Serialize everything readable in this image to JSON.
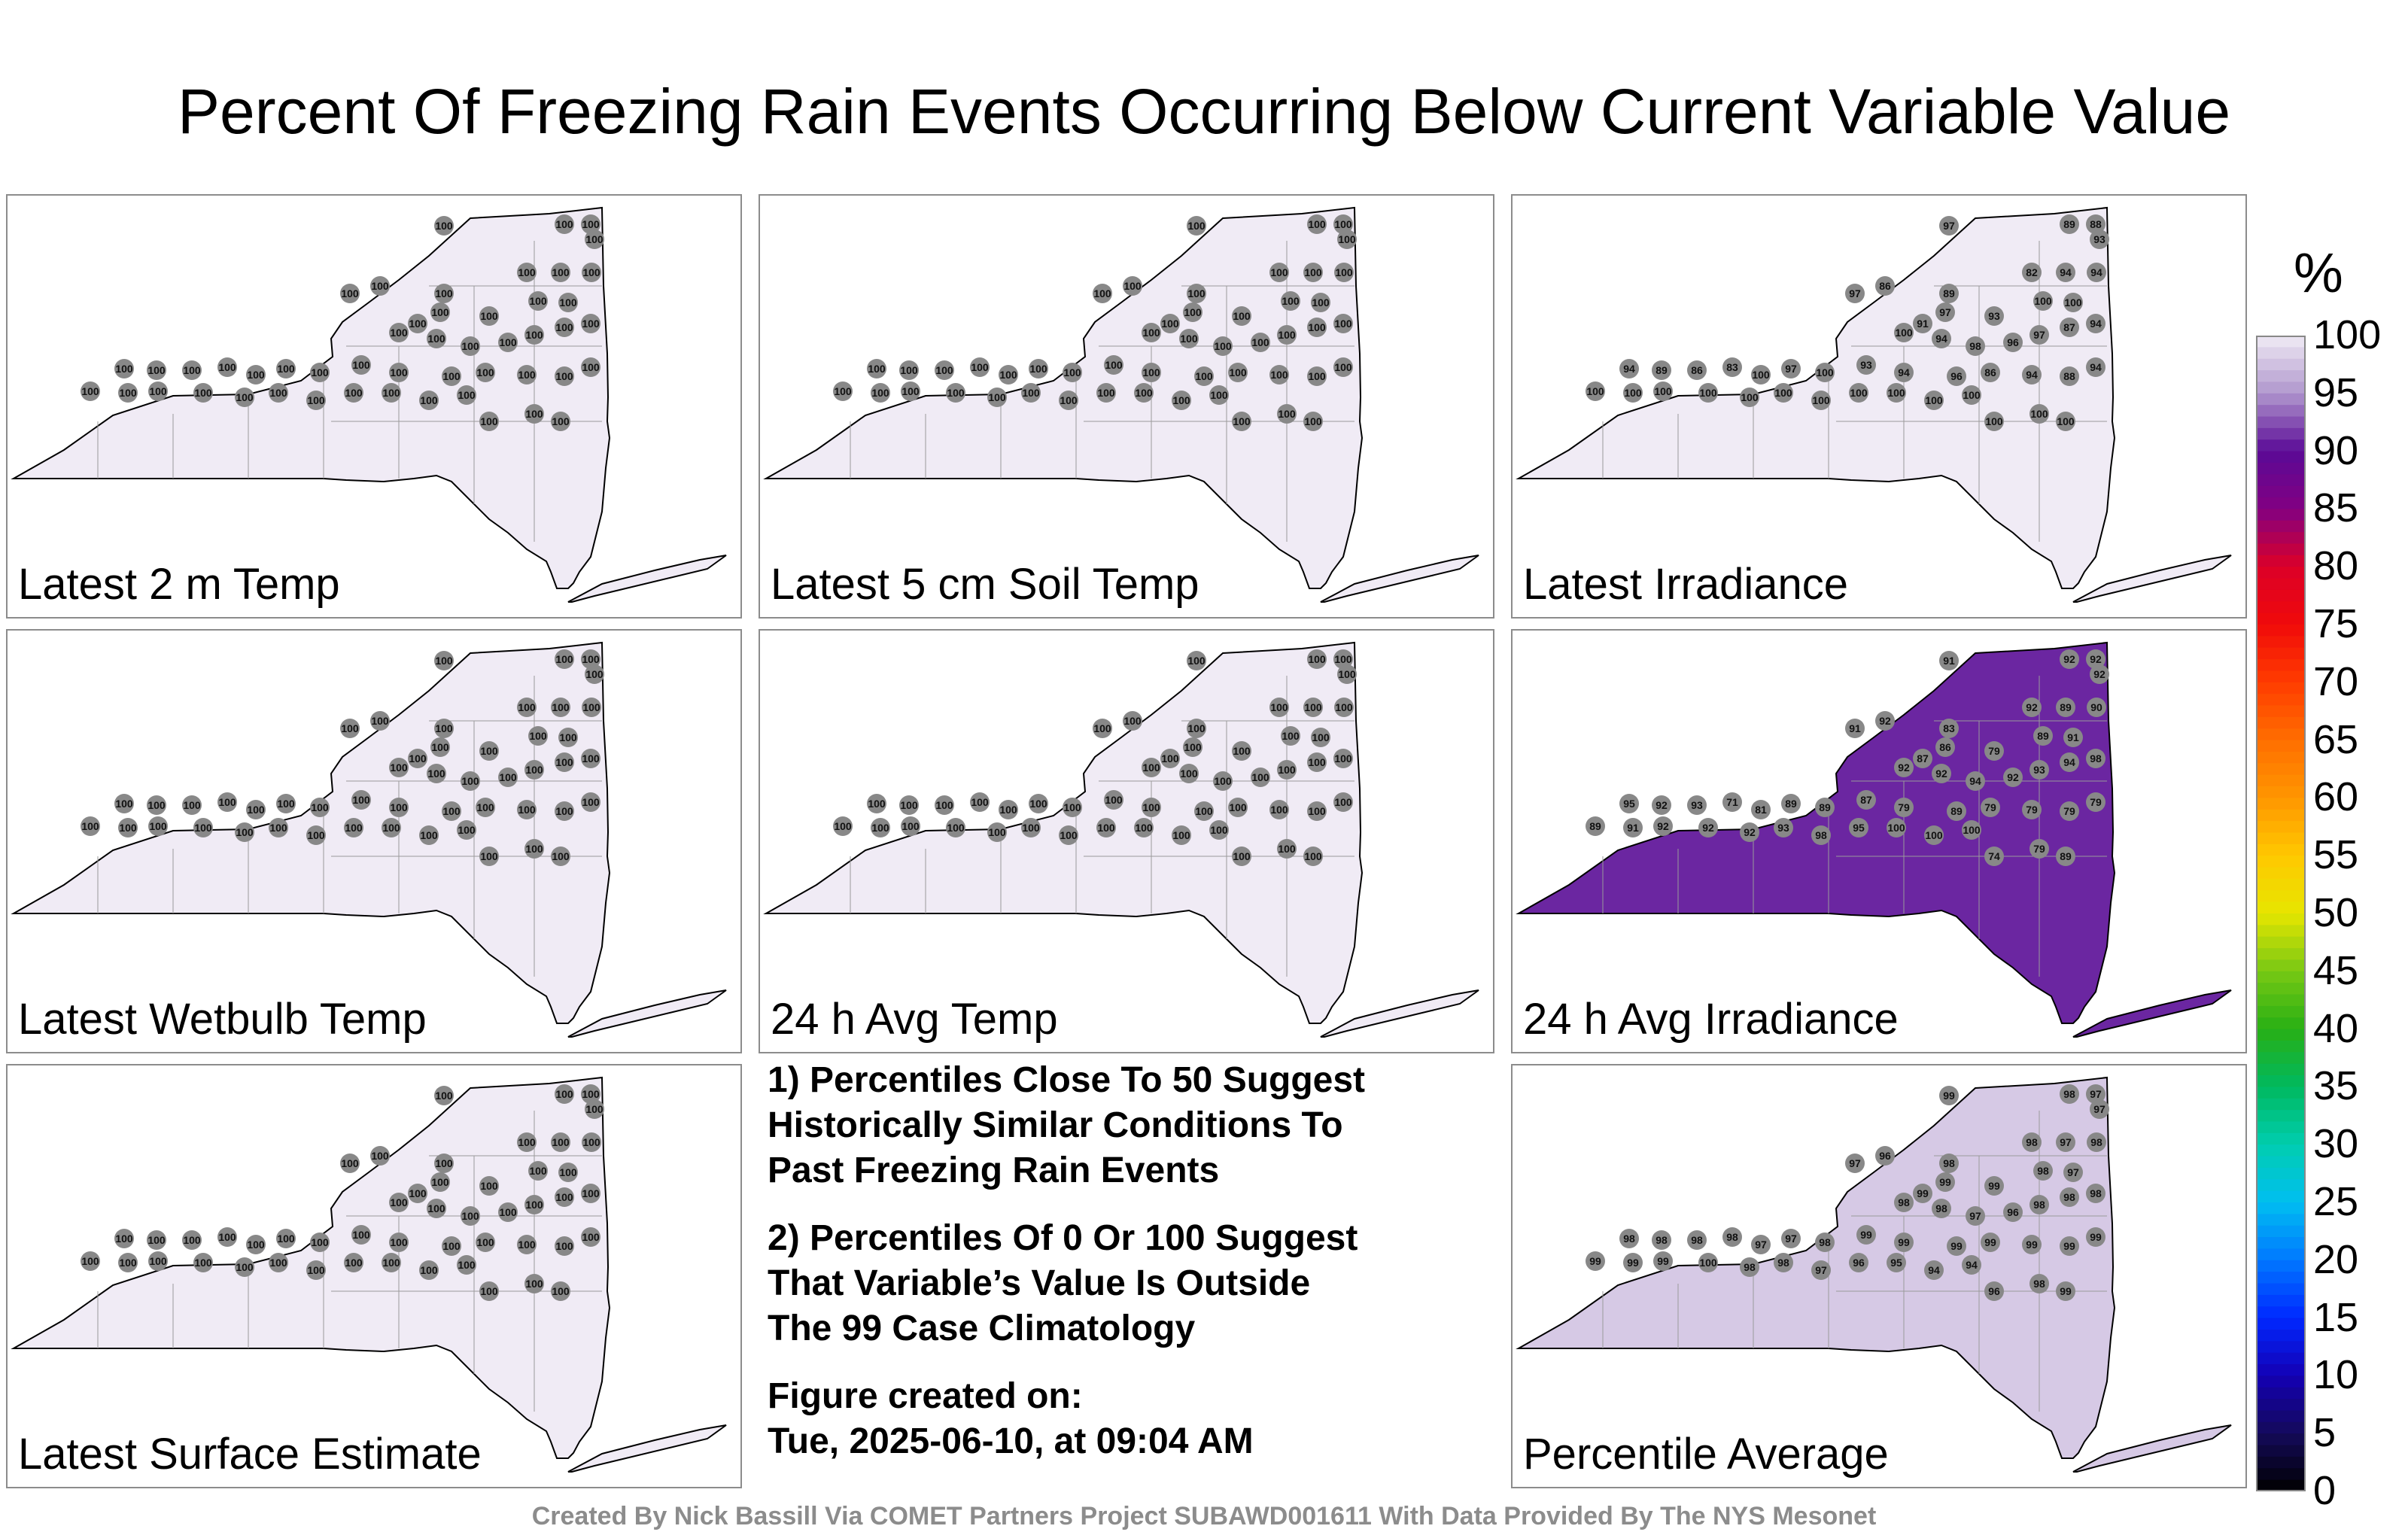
{
  "title": "Percent Of Freezing Rain Events Occurring Below Current Variable Value",
  "panels": [
    {
      "label": "Latest 2 m Temp",
      "base_percentile": 100,
      "stations": [
        100,
        100,
        100,
        100,
        100,
        100,
        100,
        100,
        100,
        100,
        100,
        100,
        100,
        100,
        100,
        100,
        100,
        100,
        100,
        100,
        100,
        100,
        100,
        100,
        100,
        100,
        100,
        100,
        100,
        100,
        100,
        100,
        100,
        100,
        100,
        100,
        100,
        100,
        100,
        100,
        100,
        100,
        100,
        100,
        100,
        100,
        100,
        100,
        100,
        100
      ]
    },
    {
      "label": "Latest 5 cm Soil Temp",
      "base_percentile": 100,
      "stations": [
        100,
        100,
        100,
        100,
        100,
        100,
        100,
        100,
        100,
        100,
        100,
        100,
        100,
        100,
        100,
        100,
        100,
        100,
        100,
        100,
        100,
        100,
        100,
        100,
        100,
        100,
        100,
        100,
        100,
        100,
        100,
        100,
        100,
        100,
        100,
        100,
        100,
        100,
        100,
        100,
        100,
        100,
        100,
        100,
        100,
        100,
        100,
        100,
        100,
        100
      ]
    },
    {
      "label": "Latest Irradiance",
      "base_percentile": 100,
      "stations": [
        97,
        89,
        88,
        93,
        86,
        97,
        82,
        94,
        94,
        89,
        97,
        91,
        93,
        100,
        100,
        100,
        94,
        98,
        96,
        97,
        87,
        94,
        94,
        89,
        86,
        83,
        100,
        97,
        100,
        93,
        94,
        96,
        86,
        94,
        88,
        94,
        100,
        100,
        100,
        100,
        100,
        100,
        100,
        100,
        100,
        100,
        100,
        100,
        100,
        100
      ]
    },
    {
      "label": "Latest Wetbulb Temp",
      "base_percentile": 100,
      "stations": [
        100,
        100,
        100,
        100,
        100,
        100,
        100,
        100,
        100,
        100,
        100,
        100,
        100,
        100,
        100,
        100,
        100,
        100,
        100,
        100,
        100,
        100,
        100,
        100,
        100,
        100,
        100,
        100,
        100,
        100,
        100,
        100,
        100,
        100,
        100,
        100,
        100,
        100,
        100,
        100,
        100,
        100,
        100,
        100,
        100,
        100,
        100,
        100,
        100,
        100
      ]
    },
    {
      "label": "24 h Avg Temp",
      "base_percentile": 100,
      "stations": [
        100,
        100,
        100,
        100,
        100,
        100,
        100,
        100,
        100,
        100,
        100,
        100,
        100,
        100,
        100,
        100,
        100,
        100,
        100,
        100,
        100,
        100,
        100,
        100,
        100,
        100,
        100,
        100,
        100,
        100,
        100,
        100,
        100,
        100,
        100,
        100,
        100,
        100,
        100,
        100,
        100,
        100,
        100,
        100,
        100,
        100,
        100,
        100,
        100,
        100
      ]
    },
    {
      "label": "24 h Avg Irradiance",
      "base_percentile": 91,
      "stations": [
        91,
        92,
        92,
        92,
        92,
        91,
        92,
        89,
        90,
        83,
        86,
        87,
        79,
        89,
        91,
        92,
        92,
        94,
        92,
        93,
        94,
        98,
        95,
        92,
        93,
        71,
        81,
        89,
        89,
        87,
        79,
        89,
        79,
        79,
        79,
        79,
        89,
        91,
        92,
        92,
        92,
        93,
        98,
        95,
        100,
        100,
        100,
        74,
        79,
        89
      ]
    },
    {
      "label": "Latest Surface Estimate",
      "base_percentile": 100,
      "stations": [
        100,
        100,
        100,
        100,
        100,
        100,
        100,
        100,
        100,
        100,
        100,
        100,
        100,
        100,
        100,
        100,
        100,
        100,
        100,
        100,
        100,
        100,
        100,
        100,
        100,
        100,
        100,
        100,
        100,
        100,
        100,
        100,
        100,
        100,
        100,
        100,
        100,
        100,
        100,
        100,
        100,
        100,
        100,
        100,
        100,
        100,
        100,
        100,
        100,
        100
      ]
    },
    {
      "label": "Percentile Average",
      "base_percentile": 98,
      "stations": [
        99,
        98,
        97,
        97,
        96,
        97,
        98,
        97,
        98,
        98,
        99,
        99,
        99,
        98,
        97,
        98,
        98,
        97,
        96,
        98,
        98,
        98,
        98,
        98,
        98,
        98,
        97,
        97,
        98,
        99,
        99,
        99,
        99,
        99,
        99,
        99,
        99,
        99,
        99,
        100,
        98,
        98,
        97,
        96,
        95,
        94,
        94,
        96,
        98,
        99
      ]
    }
  ],
  "notes": [
    "1) Percentiles Close To 50 Suggest\nHistorically Similar Conditions To\nPast Freezing Rain Events",
    "2) Percentiles Of 0 Or 100 Suggest\nThat Variable’s Value Is Outside\nThe 99 Case Climatology",
    "Figure created on:\nTue, 2025-06-10, at 09:04 AM"
  ],
  "colorbar": {
    "unit": "%",
    "ticks": [
      "100",
      "95",
      "90",
      "85",
      "80",
      "75",
      "70",
      "65",
      "60",
      "55",
      "50",
      "45",
      "40",
      "35",
      "30",
      "25",
      "20",
      "15",
      "10",
      "5",
      "0"
    ]
  },
  "footer": "Created By Nick Bassill Via COMET Partners Project SUBAWD001611 With Data Provided By The NYS Mesonet"
}
